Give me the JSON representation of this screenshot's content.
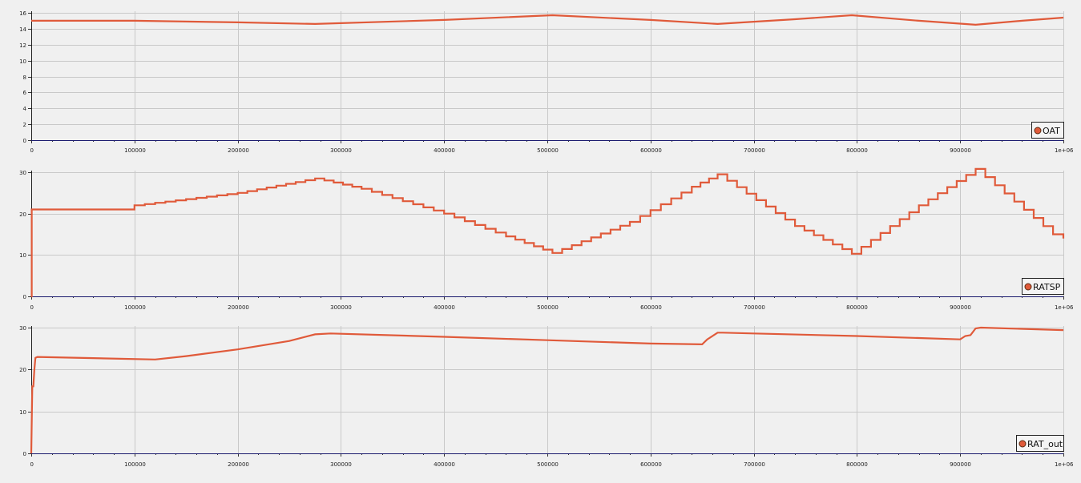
{
  "colors": {
    "series": "#e05a3a",
    "axis": "#1a1a6e",
    "grid": "#c9c9c9",
    "background": "#f0f0f0"
  },
  "chart_data": [
    {
      "type": "line",
      "title": "",
      "xlabel": "",
      "ylabel": "",
      "legend_position": "bottom-right",
      "grid": true,
      "xlim": [
        0,
        1000000
      ],
      "ylim": [
        0,
        16
      ],
      "x_tick_labels": [
        "0",
        "100000",
        "200000",
        "300000",
        "400000",
        "500000",
        "600000",
        "700000",
        "800000",
        "900000",
        "1e+06"
      ],
      "y_tick_labels": [
        "0",
        "2",
        "4",
        "6",
        "8",
        "10",
        "12",
        "14",
        "16"
      ],
      "series": [
        {
          "name": "OAT",
          "x": [
            0,
            100000,
            200000,
            275000,
            400000,
            505000,
            600000,
            665000,
            740000,
            795000,
            860000,
            915000,
            960000,
            1000000
          ],
          "y": [
            15.0,
            15.0,
            14.8,
            14.6,
            15.1,
            15.7,
            15.1,
            14.6,
            15.2,
            15.7,
            15.0,
            14.5,
            15.0,
            15.4
          ]
        }
      ]
    },
    {
      "type": "line",
      "title": "",
      "xlabel": "",
      "ylabel": "",
      "legend_position": "bottom-right",
      "grid": true,
      "xlim": [
        0,
        1000000
      ],
      "ylim": [
        0,
        30
      ],
      "x_tick_labels": [
        "0",
        "100000",
        "200000",
        "300000",
        "400000",
        "500000",
        "600000",
        "700000",
        "800000",
        "900000",
        "1e+06"
      ],
      "y_tick_labels": [
        "0",
        "10",
        "20",
        "30"
      ],
      "series": [
        {
          "name": "RATSP",
          "step": true,
          "x": [
            0,
            500,
            100000,
            200000,
            275000,
            320000,
            400000,
            460000,
            505000,
            580000,
            640000,
            665000,
            740000,
            795000,
            860000,
            915000,
            990000,
            1000000
          ],
          "y": [
            0,
            21.0,
            22.0,
            25.0,
            28.5,
            26.0,
            20.0,
            14.5,
            10.5,
            18.0,
            26.5,
            29.5,
            17.0,
            10.3,
            22.0,
            30.8,
            15.0,
            14.0
          ]
        }
      ]
    },
    {
      "type": "line",
      "title": "",
      "xlabel": "",
      "ylabel": "",
      "legend_position": "bottom-right",
      "grid": true,
      "xlim": [
        0,
        1000000
      ],
      "ylim": [
        0,
        30
      ],
      "x_tick_labels": [
        "0",
        "100000",
        "200000",
        "300000",
        "400000",
        "500000",
        "600000",
        "700000",
        "800000",
        "900000",
        "1e+06"
      ],
      "y_tick_labels": [
        "0",
        "10",
        "20",
        "30"
      ],
      "series": [
        {
          "name": "RAT_out",
          "x": [
            0,
            1000,
            2000,
            3000,
            4000,
            6000,
            120000,
            150000,
            200000,
            250000,
            275000,
            290000,
            400000,
            500000,
            600000,
            650000,
            655000,
            665000,
            670000,
            700000,
            800000,
            900000,
            905000,
            910000,
            915000,
            920000,
            1000000
          ],
          "y": [
            0,
            16.0,
            16.0,
            20.0,
            22.8,
            23.0,
            22.4,
            23.2,
            24.8,
            26.8,
            28.4,
            28.6,
            27.8,
            27.0,
            26.2,
            26.0,
            27.2,
            28.8,
            28.8,
            28.6,
            28.0,
            27.2,
            28.0,
            28.2,
            29.8,
            30.0,
            29.4
          ]
        }
      ]
    }
  ]
}
